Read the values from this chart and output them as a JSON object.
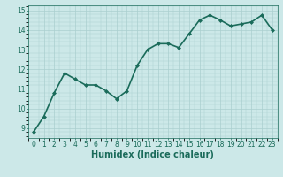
{
  "x": [
    0,
    1,
    2,
    3,
    4,
    5,
    6,
    7,
    8,
    9,
    10,
    11,
    12,
    13,
    14,
    15,
    16,
    17,
    18,
    19,
    20,
    21,
    22,
    23
  ],
  "y": [
    8.8,
    9.6,
    10.8,
    11.8,
    11.5,
    11.2,
    11.2,
    10.9,
    10.5,
    10.9,
    12.2,
    13.0,
    13.3,
    13.3,
    13.1,
    13.8,
    14.5,
    14.75,
    14.5,
    14.2,
    14.3,
    14.4,
    14.75,
    14.0
  ],
  "line_color": "#1a6b5a",
  "marker": "D",
  "marker_size": 2,
  "bg_color": "#cce8e8",
  "grid_color": "#aacfcf",
  "xlabel": "Humidex (Indice chaleur)",
  "xlabel_fontsize": 7,
  "ylim": [
    8.5,
    15.25
  ],
  "xlim": [
    -0.5,
    23.5
  ],
  "yticks": [
    9,
    10,
    11,
    12,
    13,
    14,
    15
  ],
  "xticks": [
    0,
    1,
    2,
    3,
    4,
    5,
    6,
    7,
    8,
    9,
    10,
    11,
    12,
    13,
    14,
    15,
    16,
    17,
    18,
    19,
    20,
    21,
    22,
    23
  ],
  "tick_fontsize": 5.5,
  "linewidth": 1.2
}
